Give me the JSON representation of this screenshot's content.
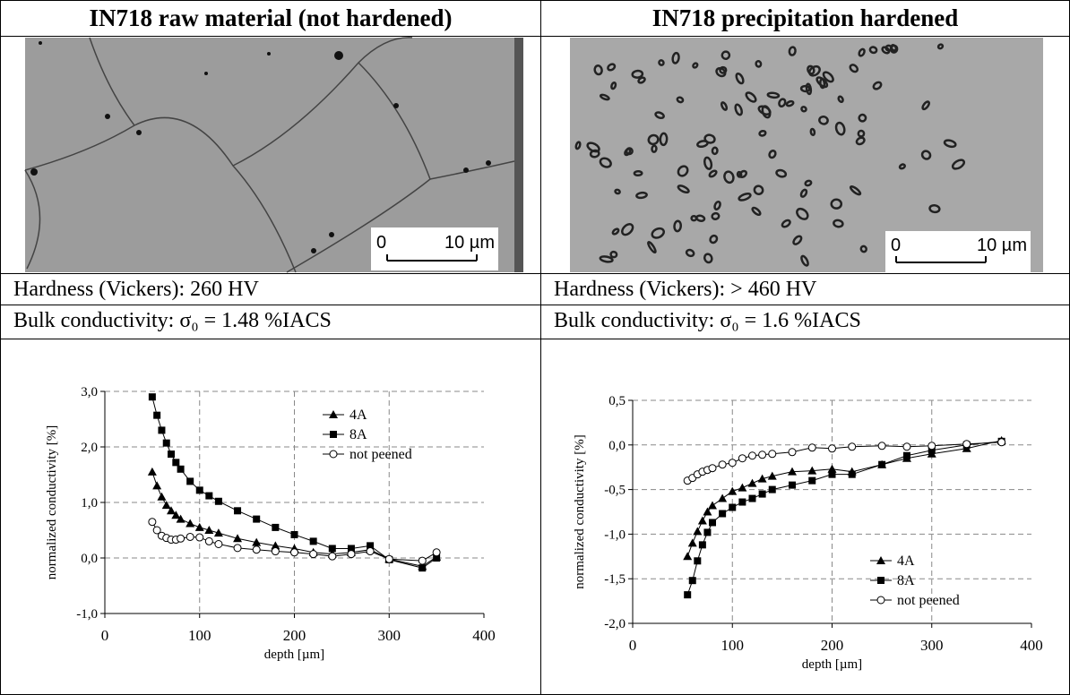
{
  "panels": [
    {
      "header": "IN718 raw material (not hardened)",
      "scale_start": "0",
      "scale_end": "10 µm",
      "hardness": "Hardness (Vickers): 260 HV",
      "conductivity": "Bulk conductivity: σ₀ = 1.48 %IACS"
    },
    {
      "header": "IN718 precipitation hardened",
      "scale_start": "0",
      "scale_end": "10 µm",
      "hardness": "Hardness (Vickers): > 460 HV",
      "conductivity": "Bulk conductivity: σ₀ = 1.6 %IACS"
    }
  ],
  "chart_data": [
    {
      "type": "line",
      "xlabel": "depth [µm]",
      "ylabel": "normalized conductivity [%]",
      "xlim": [
        0,
        400
      ],
      "xticks": [
        0,
        100,
        200,
        300,
        400
      ],
      "ylim": [
        -1,
        3
      ],
      "yticks": [
        {
          "value": -1,
          "label": "-1,0"
        },
        {
          "value": 0,
          "label": "0,0"
        },
        {
          "value": 1,
          "label": "1,0"
        },
        {
          "value": 2,
          "label": "2,0"
        },
        {
          "value": 3,
          "label": "3,0"
        }
      ],
      "grid": true,
      "legend": "upper right",
      "x": [
        50,
        55,
        60,
        65,
        70,
        75,
        80,
        90,
        100,
        110,
        120,
        140,
        160,
        180,
        200,
        220,
        240,
        260,
        280,
        300,
        335,
        350
      ],
      "series": [
        {
          "name": "4A",
          "color": "#000000",
          "marker": "triangle",
          "values": [
            1.55,
            1.3,
            1.1,
            0.95,
            0.85,
            0.77,
            0.7,
            0.62,
            0.55,
            0.5,
            0.45,
            0.35,
            0.28,
            0.22,
            0.17,
            0.1,
            0.07,
            0.1,
            0.15,
            -0.02,
            -0.15,
            0.02
          ]
        },
        {
          "name": "8A",
          "color": "#000000",
          "marker": "square",
          "values": [
            2.9,
            2.57,
            2.3,
            2.07,
            1.87,
            1.72,
            1.6,
            1.38,
            1.22,
            1.12,
            1.02,
            0.85,
            0.7,
            0.55,
            0.42,
            0.3,
            0.17,
            0.17,
            0.22,
            -0.03,
            -0.18,
            0.0
          ]
        },
        {
          "name": "not peened",
          "color": "#000000",
          "marker": "circle",
          "values": [
            0.65,
            0.5,
            0.4,
            0.36,
            0.33,
            0.33,
            0.35,
            0.38,
            0.37,
            0.3,
            0.25,
            0.18,
            0.15,
            0.12,
            0.1,
            0.07,
            0.03,
            0.07,
            0.12,
            -0.02,
            -0.05,
            0.1
          ]
        }
      ]
    },
    {
      "type": "line",
      "xlabel": "depth [µm]",
      "ylabel": "normalized conductivity [%]",
      "xlim": [
        0,
        400
      ],
      "xticks": [
        0,
        100,
        200,
        300,
        400
      ],
      "ylim": [
        -2,
        0.5
      ],
      "yticks": [
        {
          "value": -2,
          "label": "-2,0"
        },
        {
          "value": -1.5,
          "label": "-1,5"
        },
        {
          "value": -1,
          "label": "-1,0"
        },
        {
          "value": -0.5,
          "label": "-0,5"
        },
        {
          "value": 0,
          "label": "0,0"
        },
        {
          "value": 0.5,
          "label": "0,5"
        }
      ],
      "grid": true,
      "legend": "lower right",
      "x": [
        55,
        60,
        65,
        70,
        75,
        80,
        90,
        100,
        110,
        120,
        130,
        140,
        160,
        180,
        200,
        220,
        250,
        275,
        300,
        335,
        370
      ],
      "series": [
        {
          "name": "4A",
          "color": "#000000",
          "marker": "triangle",
          "values": [
            -1.25,
            -1.1,
            -0.97,
            -0.85,
            -0.75,
            -0.68,
            -0.6,
            -0.52,
            -0.48,
            -0.43,
            -0.38,
            -0.35,
            -0.3,
            -0.29,
            -0.27,
            -0.3,
            -0.22,
            -0.15,
            -0.1,
            -0.04,
            0.05
          ]
        },
        {
          "name": "8A",
          "color": "#000000",
          "marker": "square",
          "values": [
            -1.68,
            -1.52,
            -1.3,
            -1.12,
            -0.98,
            -0.87,
            -0.77,
            -0.7,
            -0.64,
            -0.6,
            -0.55,
            -0.5,
            -0.45,
            -0.4,
            -0.33,
            -0.33,
            -0.22,
            -0.12,
            -0.06,
            0.0,
            0.04
          ]
        },
        {
          "name": "not peened",
          "color": "#000000",
          "marker": "circle",
          "values": [
            -0.4,
            -0.37,
            -0.33,
            -0.3,
            -0.28,
            -0.26,
            -0.22,
            -0.2,
            -0.15,
            -0.12,
            -0.11,
            -0.1,
            -0.08,
            -0.03,
            -0.04,
            -0.02,
            -0.01,
            -0.02,
            -0.01,
            0.01,
            0.03
          ]
        }
      ]
    }
  ]
}
